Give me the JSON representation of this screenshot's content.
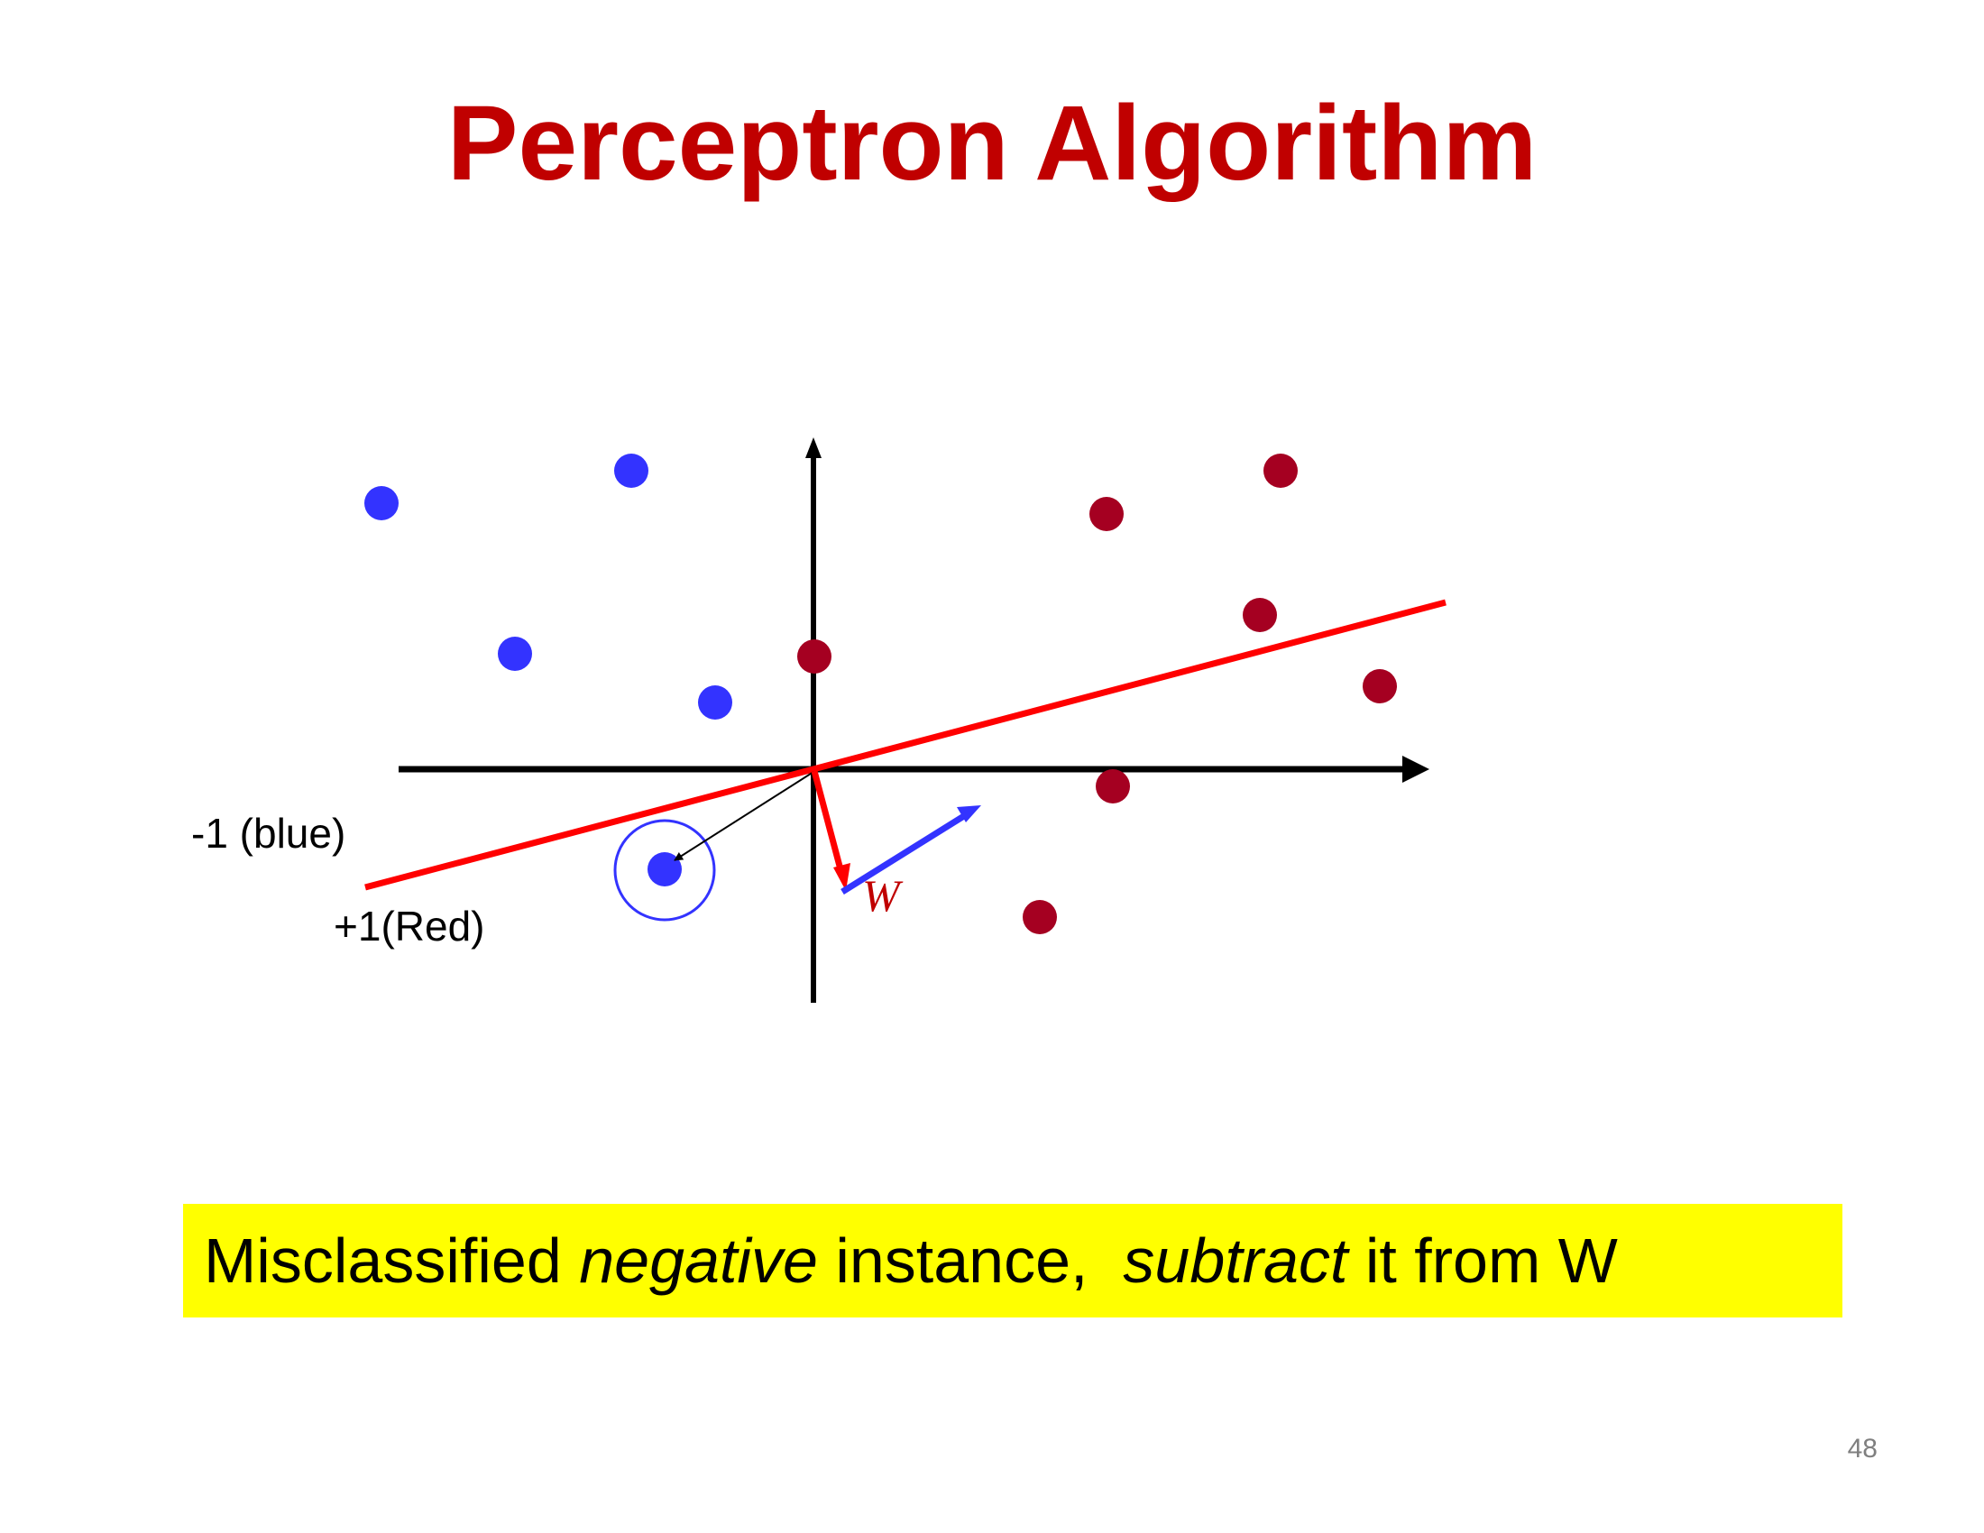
{
  "slide": {
    "title": "Perceptron Algorithm",
    "page_number": "48"
  },
  "diagram": {
    "label_negative": "-1 (blue)",
    "label_positive": "+1(Red)",
    "weight_label": "W",
    "colors": {
      "blue_points": "#3333ff",
      "red_points": "#a50021",
      "decision_line": "#ff0000",
      "axes": "#000000"
    }
  },
  "caption": {
    "part1": "Misclassified ",
    "part2": "negative",
    "part3": " instance,  ",
    "part4": "subtract",
    "part5": " it from W",
    "background": "#ffff00"
  }
}
